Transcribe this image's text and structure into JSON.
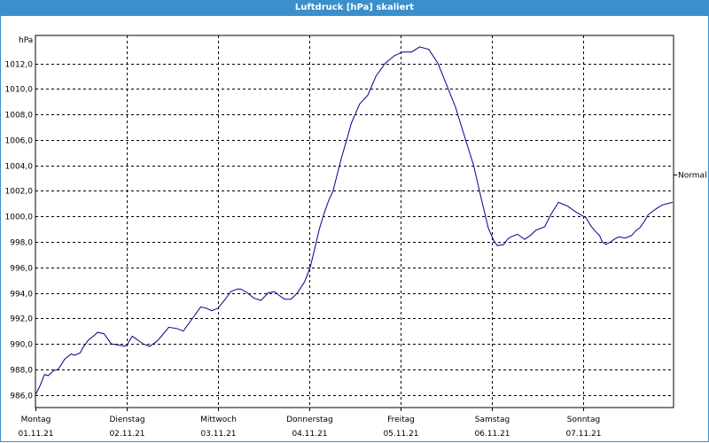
{
  "header": {
    "title": "Luftdruck [hPa] skaliert"
  },
  "chart_data": {
    "type": "line",
    "title": "Luftdruck [hPa] skaliert",
    "ylabel": "hPa",
    "ylim": [
      985.0,
      1014.2
    ],
    "yticks": [
      "986,0",
      "988,0",
      "990,0",
      "992,0",
      "994,0",
      "996,0",
      "998,0",
      "1000,0",
      "1002,0",
      "1004,0",
      "1006,0",
      "1008,0",
      "1010,0",
      "1012,0"
    ],
    "yticks_values": [
      986,
      988,
      990,
      992,
      994,
      996,
      998,
      1000,
      1002,
      1004,
      1006,
      1008,
      1010,
      1012
    ],
    "xticks": [
      {
        "day": "Montag",
        "date": "01.11.21"
      },
      {
        "day": "Dienstag",
        "date": "02.11.21"
      },
      {
        "day": "Mittwoch",
        "date": "03.11.21"
      },
      {
        "day": "Donnerstag",
        "date": "04.11.21"
      },
      {
        "day": "Freitag",
        "date": "05.11.21"
      },
      {
        "day": "Samstag",
        "date": "06.11.21"
      },
      {
        "day": "Sonntag",
        "date": "07.11.21"
      }
    ],
    "xlim_days": [
      0,
      6.98
    ],
    "reference": {
      "label": "Normal",
      "value": 1003.3
    },
    "grid": true,
    "line_color": "#00008b",
    "series": [
      {
        "x": [
          0.0,
          0.05,
          0.1,
          0.14,
          0.2,
          0.25,
          0.32,
          0.39,
          0.43,
          0.49,
          0.52,
          0.58,
          0.65,
          0.68,
          0.75,
          0.83,
          0.92,
          0.98,
          1.01,
          1.06,
          1.1,
          1.18,
          1.25,
          1.33,
          1.38,
          1.46,
          1.55,
          1.62,
          1.67,
          1.75,
          1.81,
          1.87,
          1.93,
          2.0,
          2.08,
          2.14,
          2.21,
          2.25,
          2.32,
          2.39,
          2.47,
          2.55,
          2.62,
          2.67,
          2.73,
          2.8,
          2.87,
          2.95,
          3.01,
          3.06,
          3.11,
          3.16,
          3.21,
          3.26,
          3.31,
          3.36,
          3.41,
          3.46,
          3.55,
          3.64,
          3.73,
          3.83,
          3.93,
          4.02,
          4.12,
          4.21,
          4.31,
          4.41,
          4.5,
          4.6,
          4.7,
          4.8,
          4.89,
          4.96,
          5.02,
          5.06,
          5.13,
          5.17,
          5.21,
          5.28,
          5.36,
          5.42,
          5.48,
          5.58,
          5.65,
          5.73,
          5.83,
          5.93,
          6.03,
          6.09,
          6.15,
          6.18,
          6.21,
          6.25,
          6.3,
          6.34,
          6.39,
          6.46,
          6.53,
          6.58,
          6.62,
          6.67,
          6.71,
          6.76,
          6.82,
          6.87,
          6.92,
          6.98
        ],
        "values": [
          986.0,
          986.7,
          987.6,
          987.5,
          987.9,
          988.0,
          988.8,
          989.2,
          989.1,
          989.3,
          989.7,
          990.3,
          990.7,
          990.9,
          990.8,
          990.0,
          989.9,
          989.8,
          990.0,
          990.6,
          990.4,
          990.0,
          989.8,
          990.2,
          990.6,
          991.3,
          991.2,
          991.0,
          991.5,
          992.3,
          992.9,
          992.8,
          992.6,
          992.8,
          993.5,
          994.1,
          994.3,
          994.3,
          994.0,
          993.6,
          993.4,
          994.0,
          994.1,
          993.8,
          993.5,
          993.5,
          994.0,
          994.9,
          996.0,
          997.5,
          999.0,
          1000.2,
          1001.2,
          1002.0,
          1003.4,
          1004.8,
          1006.0,
          1007.3,
          1008.8,
          1009.5,
          1011.0,
          1012.0,
          1012.6,
          1012.9,
          1012.9,
          1013.3,
          1013.1,
          1012.0,
          1010.4,
          1008.6,
          1006.3,
          1004.0,
          1001.2,
          999.1,
          998.1,
          997.7,
          997.8,
          998.2,
          998.4,
          998.6,
          998.2,
          998.5,
          998.9,
          999.2,
          1000.2,
          1001.1,
          1000.8,
          1000.3,
          999.9,
          999.2,
          998.7,
          998.5,
          998.0,
          997.8,
          998.0,
          998.2,
          998.4,
          998.3,
          998.5,
          998.9,
          999.1,
          999.6,
          1000.1,
          1000.4,
          1000.7,
          1000.9,
          1001.0,
          1001.1
        ]
      }
    ]
  }
}
